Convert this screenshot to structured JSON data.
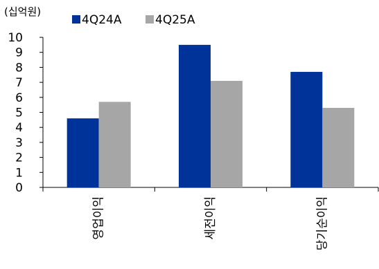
{
  "chart_data": {
    "type": "bar",
    "unit_label": "(십억원)",
    "categories": [
      "영업이익",
      "세전이익",
      "당기순이익"
    ],
    "series": [
      {
        "name": "4Q24A",
        "values": [
          4.6,
          9.5,
          7.7
        ],
        "color": "#003399"
      },
      {
        "name": "4Q25A",
        "values": [
          5.7,
          7.1,
          5.3
        ],
        "color": "#a6a6a6"
      }
    ],
    "ylim": [
      0,
      10
    ],
    "yticks": [
      "0",
      "1",
      "2",
      "3",
      "4",
      "5",
      "6",
      "7",
      "8",
      "9",
      "10"
    ],
    "grid": false,
    "legend_position": "top-left"
  }
}
